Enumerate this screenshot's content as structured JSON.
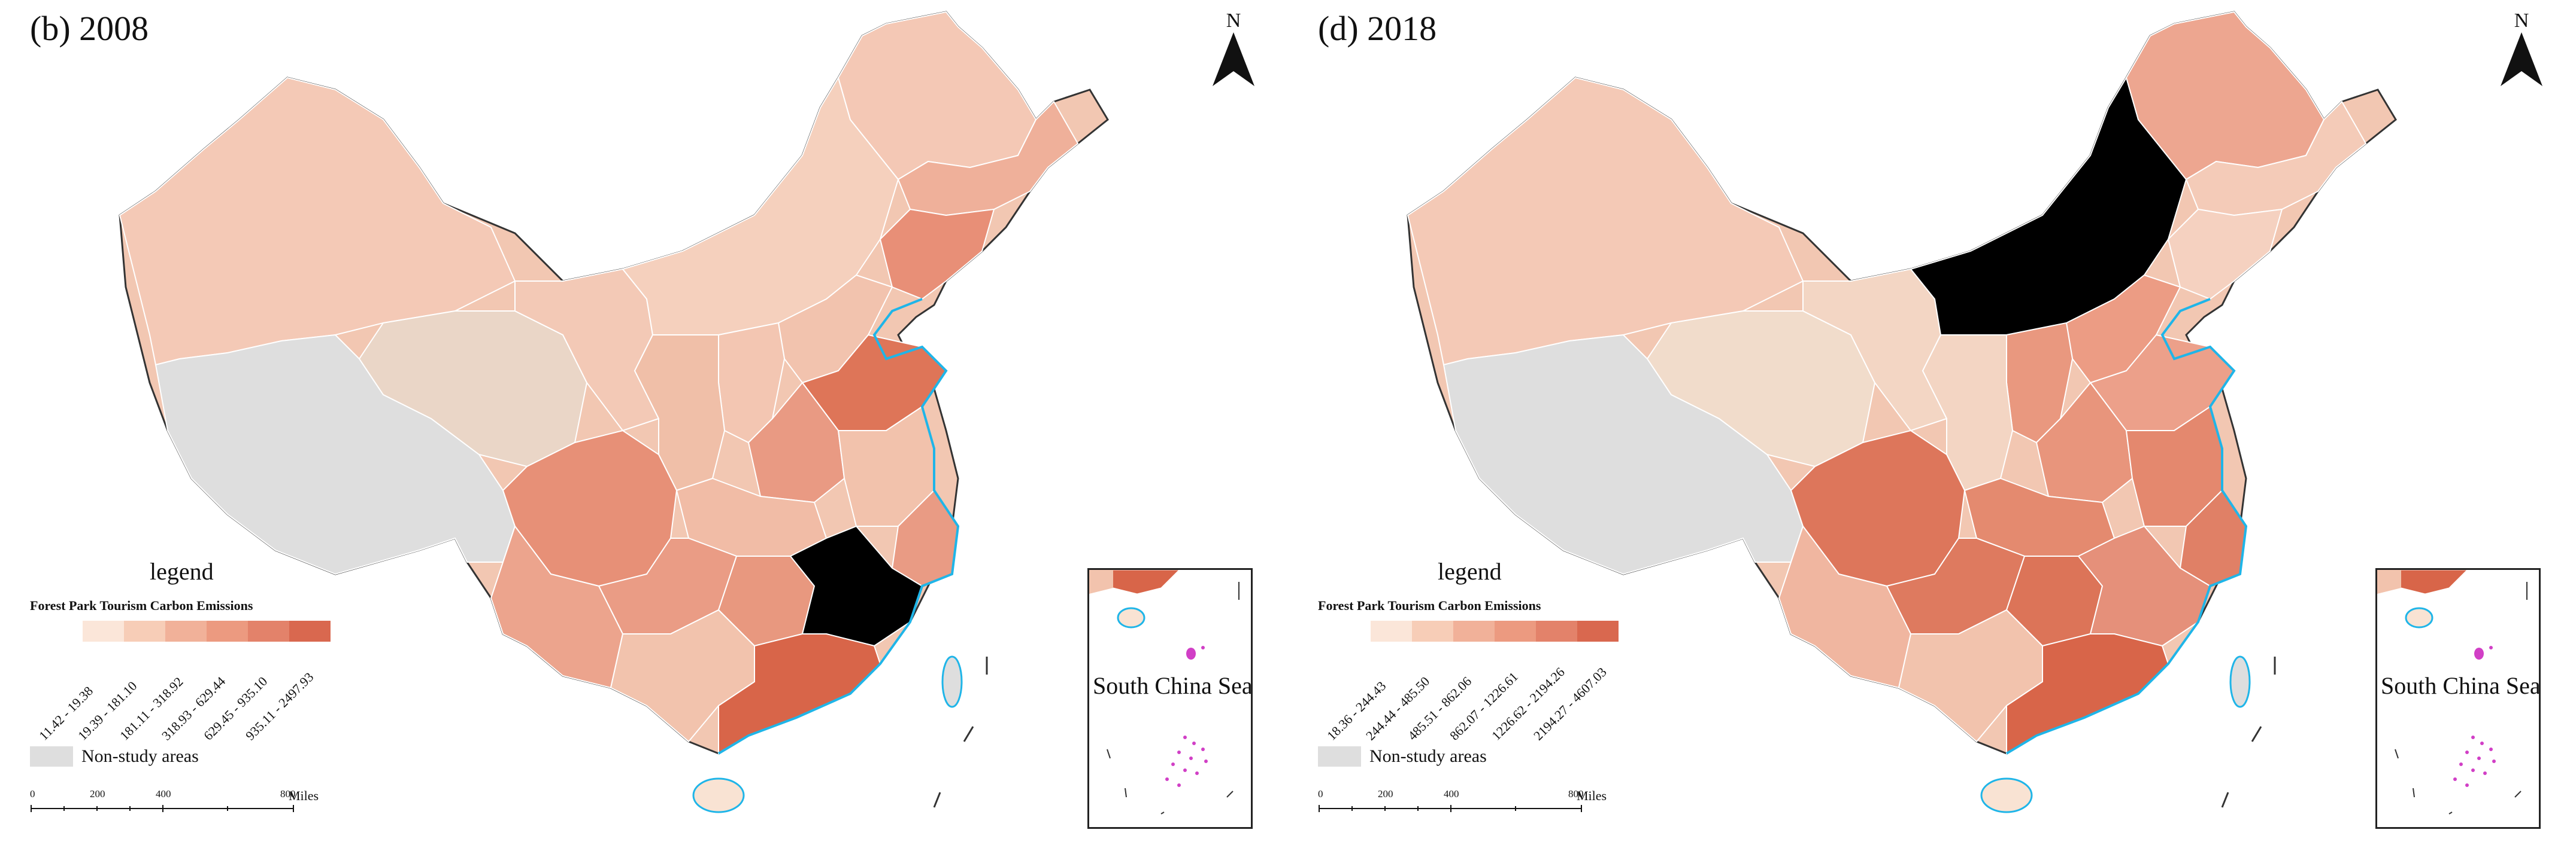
{
  "figure": {
    "legend_title": "legend",
    "legend_subtitle": "Forest Park Tourism Carbon Emissions",
    "non_study_label": "Non-study areas",
    "inset_label": "South China Sea",
    "north_letter": "N",
    "scale_ticks": [
      "0",
      "200",
      "400",
      "800"
    ],
    "scale_unit": "Miles",
    "colors": {
      "class1": "#fbe6d9",
      "class2": "#f7cdb7",
      "class3": "#f1b199",
      "class4": "#ec9a80",
      "class5": "#e3826a",
      "class6": "#d9684f",
      "non_study": "#dedede",
      "coastline": "#1fb5e8",
      "islands": "#d13fc6",
      "border": "#ffffff"
    }
  },
  "panels": [
    {
      "title": "(b) 2008",
      "legend_classes": [
        "11.42 - 19.38",
        "19.39 - 181.10",
        "181.11 - 318.92",
        "318.93 - 629.44",
        "629.45 - 935.10",
        "935.11 - 2497.93"
      ]
    },
    {
      "title": "(d) 2018",
      "legend_classes": [
        "18.36 - 244.43",
        "244.44 - 485.50",
        "485.51 - 862.06",
        "862.07 - 1226.61",
        "1226.62 - 2194.26",
        "2194.27 - 4607.03"
      ]
    }
  ]
}
